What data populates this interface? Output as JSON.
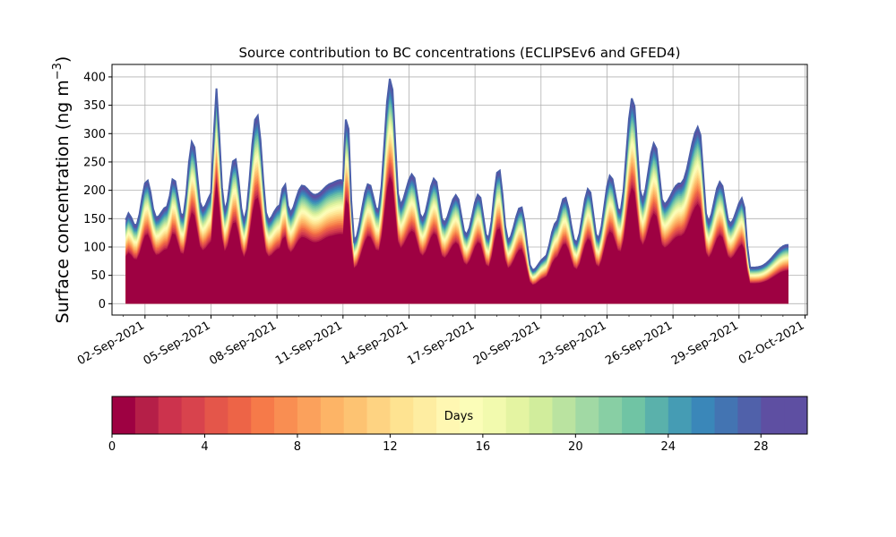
{
  "chart_data": {
    "type": "area",
    "title": "Source contribution to BC concentrations (ECLIPSEv6 and GFED4)",
    "ylabel_main": "Surface concentration (ng m",
    "ylabel_exp": "−3",
    "ylabel_close": ")",
    "xlabel": "",
    "x_start": "2021-09-01T03:00",
    "x_end": "2021-10-01T06:00",
    "xlim": [
      "2021-08-31T12:00",
      "2021-10-02T02:30"
    ],
    "ylim": [
      -20,
      422
    ],
    "y_ticks": [
      0,
      50,
      100,
      150,
      200,
      250,
      300,
      350,
      400
    ],
    "y_tick_labels": [
      "0",
      "50",
      "100",
      "150",
      "200",
      "250",
      "300",
      "350",
      "400"
    ],
    "x_ticks": [
      "2021-09-02",
      "2021-09-05",
      "2021-09-08",
      "2021-09-11",
      "2021-09-14",
      "2021-09-17",
      "2021-09-20",
      "2021-09-23",
      "2021-09-26",
      "2021-09-29",
      "2021-10-02"
    ],
    "x_tick_labels": [
      "02-Sep-2021",
      "05-Sep-2021",
      "08-Sep-2021",
      "11-Sep-2021",
      "14-Sep-2021",
      "17-Sep-2021",
      "20-Sep-2021",
      "23-Sep-2021",
      "26-Sep-2021",
      "29-Sep-2021",
      "02-Oct-2021"
    ],
    "grid": true,
    "total_series_key_points": [
      {
        "t": "2021-09-01T03:00",
        "y": 150
      },
      {
        "t": "2021-09-01T06:00",
        "y": 163
      },
      {
        "t": "2021-09-01T14:00",
        "y": 140
      },
      {
        "t": "2021-09-02T02:00",
        "y": 215
      },
      {
        "t": "2021-09-02T12:00",
        "y": 150
      },
      {
        "t": "2021-09-03T00:00",
        "y": 175
      },
      {
        "t": "2021-09-03T07:00",
        "y": 225
      },
      {
        "t": "2021-09-03T17:00",
        "y": 150
      },
      {
        "t": "2021-09-04T04:00",
        "y": 285
      },
      {
        "t": "2021-09-04T14:00",
        "y": 170
      },
      {
        "t": "2021-09-05T02:00",
        "y": 200
      },
      {
        "t": "2021-09-05T04:00",
        "y": 398
      },
      {
        "t": "2021-09-05T15:00",
        "y": 160
      },
      {
        "t": "2021-09-06T02:00",
        "y": 258
      },
      {
        "t": "2021-09-06T12:00",
        "y": 150
      },
      {
        "t": "2021-09-07T02:00",
        "y": 332
      },
      {
        "t": "2021-09-07T14:00",
        "y": 145
      },
      {
        "t": "2021-09-08T02:00",
        "y": 175
      },
      {
        "t": "2021-09-08T08:00",
        "y": 217
      },
      {
        "t": "2021-09-08T14:00",
        "y": 160
      },
      {
        "t": "2021-09-09T04:00",
        "y": 205
      },
      {
        "t": "2021-09-09T16:00",
        "y": 195
      },
      {
        "t": "2021-09-10T10:00",
        "y": 210
      },
      {
        "t": "2021-09-11T00:00",
        "y": 215
      },
      {
        "t": "2021-09-11T04:00",
        "y": 343
      },
      {
        "t": "2021-09-11T12:00",
        "y": 115
      },
      {
        "t": "2021-09-12T04:00",
        "y": 210
      },
      {
        "t": "2021-09-12T14:00",
        "y": 160
      },
      {
        "t": "2021-09-13T04:00",
        "y": 403
      },
      {
        "t": "2021-09-13T14:00",
        "y": 175
      },
      {
        "t": "2021-09-14T04:00",
        "y": 225
      },
      {
        "t": "2021-09-14T14:00",
        "y": 150
      },
      {
        "t": "2021-09-15T04:00",
        "y": 225
      },
      {
        "t": "2021-09-15T14:00",
        "y": 140
      },
      {
        "t": "2021-09-16T04:00",
        "y": 190
      },
      {
        "t": "2021-09-16T14:00",
        "y": 125
      },
      {
        "t": "2021-09-17T04:00",
        "y": 193
      },
      {
        "t": "2021-09-17T14:00",
        "y": 110
      },
      {
        "t": "2021-09-18T02:00",
        "y": 240
      },
      {
        "t": "2021-09-18T12:00",
        "y": 115
      },
      {
        "t": "2021-09-19T02:00",
        "y": 168
      },
      {
        "t": "2021-09-19T14:00",
        "y": 58
      },
      {
        "t": "2021-09-20T04:00",
        "y": 85
      },
      {
        "t": "2021-09-20T16:00",
        "y": 140
      },
      {
        "t": "2021-09-21T02:00",
        "y": 185
      },
      {
        "t": "2021-09-21T14:00",
        "y": 110
      },
      {
        "t": "2021-09-22T04:00",
        "y": 205
      },
      {
        "t": "2021-09-22T14:00",
        "y": 110
      },
      {
        "t": "2021-09-23T04:00",
        "y": 228
      },
      {
        "t": "2021-09-23T14:00",
        "y": 165
      },
      {
        "t": "2021-09-24T04:00",
        "y": 362
      },
      {
        "t": "2021-09-24T14:00",
        "y": 180
      },
      {
        "t": "2021-09-25T04:00",
        "y": 288
      },
      {
        "t": "2021-09-25T14:00",
        "y": 175
      },
      {
        "t": "2021-09-26T08:00",
        "y": 210
      },
      {
        "t": "2021-09-27T04:00",
        "y": 315
      },
      {
        "t": "2021-09-27T14:00",
        "y": 140
      },
      {
        "t": "2021-09-28T04:00",
        "y": 215
      },
      {
        "t": "2021-09-28T14:00",
        "y": 145
      },
      {
        "t": "2021-09-29T04:00",
        "y": 185
      },
      {
        "t": "2021-09-29T12:00",
        "y": 60
      },
      {
        "t": "2021-10-01T06:00",
        "y": 100
      }
    ]
  },
  "colorbar": {
    "label": "Days",
    "min": 0,
    "max": 30,
    "levels": 30,
    "ticks": [
      0,
      4,
      8,
      12,
      16,
      20,
      24,
      28
    ],
    "tick_labels": [
      "0",
      "4",
      "8",
      "12",
      "16",
      "20",
      "24",
      "28"
    ],
    "colors": [
      "#9e0142",
      "#b51f48",
      "#cc334d",
      "#d8434d",
      "#e4564a",
      "#ed6447",
      "#f67a49",
      "#f98e52",
      "#fba15c",
      "#fdb466",
      "#fdc372",
      "#fed382",
      "#fee391",
      "#feeda1",
      "#fff7b2",
      "#fbfdb8",
      "#f2faae",
      "#e4f4a2",
      "#d1ed9c",
      "#bae3a0",
      "#a1d9a4",
      "#88cfa4",
      "#70c4a4",
      "#5ab1ab",
      "#459cb4",
      "#3a87b9",
      "#4374b2",
      "#5061aa",
      "#5e4fa2",
      "#5e4fa2"
    ]
  }
}
